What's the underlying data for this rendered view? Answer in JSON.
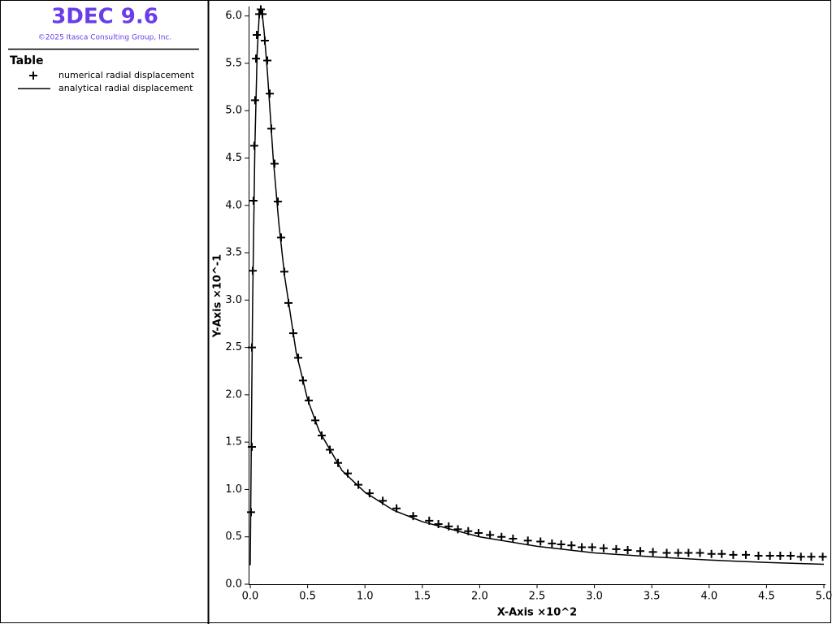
{
  "header": {
    "title": "3DEC 9.6",
    "copyright": "©2025 Itasca Consulting Group, Inc."
  },
  "chart_data": {
    "type": "scatter-line",
    "legend_title": "Table",
    "xlabel": "X-Axis ×10^2",
    "ylabel": "Y-Axis ×10^-1",
    "xlim": [
      0,
      5
    ],
    "ylim": [
      0,
      6.1
    ],
    "xticks": [
      {
        "value": 0,
        "label": "0.0"
      },
      {
        "value": 0.5,
        "label": "0.5"
      },
      {
        "value": 1,
        "label": "1.0"
      },
      {
        "value": 1.5,
        "label": "1.5"
      },
      {
        "value": 2,
        "label": "2.0"
      },
      {
        "value": 2.5,
        "label": "2.5"
      },
      {
        "value": 3,
        "label": "3.0"
      },
      {
        "value": 3.5,
        "label": "3.5"
      },
      {
        "value": 4,
        "label": "4.0"
      },
      {
        "value": 4.5,
        "label": "4.5"
      },
      {
        "value": 5,
        "label": "5.0"
      }
    ],
    "yticks": [
      {
        "value": 0,
        "label": "0.0"
      },
      {
        "value": 0.5,
        "label": "0.5"
      },
      {
        "value": 1,
        "label": "1.0"
      },
      {
        "value": 1.5,
        "label": "1.5"
      },
      {
        "value": 2,
        "label": "2.0"
      },
      {
        "value": 2.5,
        "label": "2.5"
      },
      {
        "value": 3,
        "label": "3.0"
      },
      {
        "value": 3.5,
        "label": "3.5"
      },
      {
        "value": 4,
        "label": "4.0"
      },
      {
        "value": 4.5,
        "label": "4.5"
      },
      {
        "value": 5,
        "label": "5.0"
      },
      {
        "value": 5.5,
        "label": "5.5"
      },
      {
        "value": 6,
        "label": "6.0"
      }
    ],
    "series": [
      {
        "name": "numerical radial displacement",
        "color": "#000000",
        "marker": "plus",
        "x": [
          0.007,
          0.014,
          0.014,
          0.021,
          0.028,
          0.035,
          0.042,
          0.05,
          0.057,
          0.078,
          0.092,
          0.106,
          0.127,
          0.149,
          0.17,
          0.184,
          0.212,
          0.241,
          0.269,
          0.297,
          0.333,
          0.375,
          0.418,
          0.46,
          0.51,
          0.567,
          0.623,
          0.694,
          0.765,
          0.85,
          0.942,
          1.04,
          1.155,
          1.275,
          1.42,
          1.56,
          1.64,
          1.73,
          1.81,
          1.9,
          1.99,
          2.09,
          2.19,
          2.29,
          2.42,
          2.53,
          2.63,
          2.71,
          2.8,
          2.89,
          2.98,
          3.08,
          3.19,
          3.29,
          3.4,
          3.51,
          3.63,
          3.73,
          3.82,
          3.92,
          4.02,
          4.11,
          4.21,
          4.32,
          4.43,
          4.53,
          4.62,
          4.71,
          4.8,
          4.89,
          4.99
        ],
        "values": [
          0.76,
          1.45,
          2.5,
          3.31,
          4.05,
          4.63,
          5.11,
          5.55,
          5.8,
          6.02,
          6.07,
          6.02,
          5.74,
          5.53,
          5.18,
          4.81,
          4.44,
          4.04,
          3.66,
          3.3,
          2.97,
          2.65,
          2.39,
          2.15,
          1.94,
          1.73,
          1.57,
          1.42,
          1.28,
          1.17,
          1.05,
          0.96,
          0.88,
          0.8,
          0.72,
          0.67,
          0.635,
          0.61,
          0.58,
          0.56,
          0.54,
          0.52,
          0.5,
          0.48,
          0.46,
          0.45,
          0.43,
          0.42,
          0.41,
          0.39,
          0.39,
          0.38,
          0.37,
          0.36,
          0.35,
          0.34,
          0.33,
          0.33,
          0.33,
          0.33,
          0.32,
          0.32,
          0.31,
          0.31,
          0.3,
          0.3,
          0.3,
          0.3,
          0.29,
          0.29,
          0.29
        ]
      },
      {
        "name": "analytical radial displacement",
        "color": "#000000",
        "marker": "line",
        "x": [
          0,
          0.01,
          0.02,
          0.04,
          0.06,
          0.08,
          0.1,
          0.12,
          0.15,
          0.2,
          0.25,
          0.3,
          0.4,
          0.5,
          0.6,
          0.8,
          1,
          1.25,
          1.5,
          2,
          2.5,
          3,
          3.5,
          4,
          4.5,
          5
        ],
        "values": [
          0.2,
          1.6,
          2.9,
          4.6,
          5.6,
          6.05,
          6.07,
          5.85,
          5.4,
          4.5,
          3.8,
          3.25,
          2.45,
          1.95,
          1.62,
          1.2,
          0.97,
          0.78,
          0.66,
          0.5,
          0.4,
          0.33,
          0.29,
          0.255,
          0.23,
          0.21
        ]
      }
    ]
  }
}
